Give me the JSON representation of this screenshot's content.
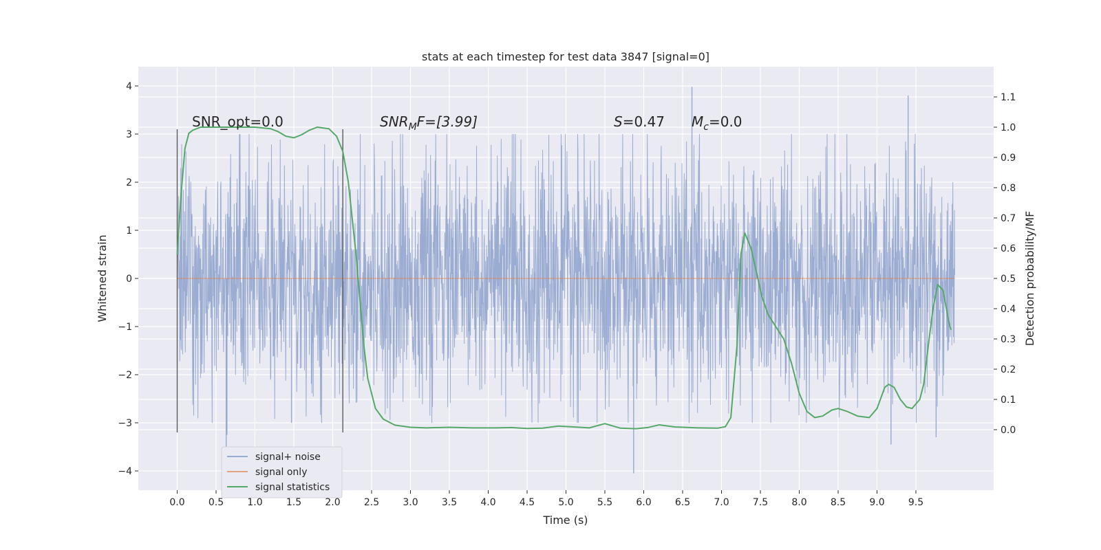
{
  "chart_data": {
    "type": "line",
    "title": "stats at each timestep for test data 3847 [signal=0]",
    "xlabel": "Time (s)",
    "ylabel_left": "Whitened strain",
    "ylabel_right": "Detection probability/MF",
    "xlim": [
      -0.5,
      10.5
    ],
    "ylim_left": [
      -4.4,
      4.4
    ],
    "ylim_right": [
      -0.2,
      1.2
    ],
    "x_ticks": [
      "0.0",
      "0.5",
      "1.0",
      "1.5",
      "2.0",
      "2.5",
      "3.0",
      "3.5",
      "4.0",
      "4.5",
      "5.0",
      "5.5",
      "6.0",
      "6.5",
      "7.0",
      "7.5",
      "8.0",
      "8.5",
      "9.0",
      "9.5"
    ],
    "y_left_ticks": [
      "−4",
      "−3",
      "−2",
      "−1",
      "0",
      "1",
      "2",
      "3",
      "4"
    ],
    "y_right_ticks": [
      "0.0",
      "0.1",
      "0.2",
      "0.3",
      "0.4",
      "0.5",
      "0.6",
      "0.7",
      "0.8",
      "0.9",
      "1.0",
      "1.1"
    ],
    "annotations": {
      "snr_opt": "SNR_opt=0.0",
      "snr_mf_label": "SNR",
      "snr_mf_sub": "M",
      "snr_mf_rest": "F=[3.99]",
      "s_label": "S",
      "s_value": "=0.47",
      "mc_label": "M",
      "mc_sub": "c",
      "mc_value": "=0.0"
    },
    "markers": {
      "x": [
        0.0,
        2.13
      ],
      "ylim": [
        -3.2,
        3.1
      ]
    },
    "noise": {
      "name": "signal+ noise",
      "x_range": [
        0.0,
        10.0
      ],
      "band": [
        -1.3,
        1.3
      ],
      "typical_peak": 2.0,
      "spikes": [
        [
          0.63,
          -3.5
        ],
        [
          0.64,
          -3.25
        ],
        [
          1.47,
          -3.0
        ],
        [
          5.87,
          -4.05
        ],
        [
          6.62,
          3.98
        ],
        [
          9.4,
          3.8
        ],
        [
          9.18,
          -3.45
        ],
        [
          9.76,
          -3.3
        ]
      ]
    },
    "signal_only": {
      "name": "signal only",
      "x_range": [
        0.0,
        10.0
      ],
      "value": 0.0
    },
    "statistics": {
      "name": "signal statistics",
      "points": [
        [
          0.0,
          0.58
        ],
        [
          0.05,
          0.78
        ],
        [
          0.1,
          0.93
        ],
        [
          0.15,
          0.98
        ],
        [
          0.2,
          0.99
        ],
        [
          0.3,
          1.0
        ],
        [
          0.5,
          1.0
        ],
        [
          1.0,
          1.0
        ],
        [
          1.2,
          0.995
        ],
        [
          1.3,
          0.985
        ],
        [
          1.4,
          0.97
        ],
        [
          1.5,
          0.965
        ],
        [
          1.6,
          0.975
        ],
        [
          1.7,
          0.99
        ],
        [
          1.8,
          1.0
        ],
        [
          1.95,
          0.995
        ],
        [
          2.05,
          0.97
        ],
        [
          2.13,
          0.92
        ],
        [
          2.2,
          0.82
        ],
        [
          2.3,
          0.58
        ],
        [
          2.4,
          0.28
        ],
        [
          2.45,
          0.17
        ],
        [
          2.5,
          0.12
        ],
        [
          2.55,
          0.07
        ],
        [
          2.65,
          0.035
        ],
        [
          2.8,
          0.015
        ],
        [
          3.0,
          0.008
        ],
        [
          3.2,
          0.006
        ],
        [
          3.5,
          0.008
        ],
        [
          3.8,
          0.006
        ],
        [
          4.1,
          0.006
        ],
        [
          4.3,
          0.007
        ],
        [
          4.5,
          0.004
        ],
        [
          4.7,
          0.005
        ],
        [
          4.9,
          0.012
        ],
        [
          5.1,
          0.009
        ],
        [
          5.3,
          0.006
        ],
        [
          5.5,
          0.02
        ],
        [
          5.7,
          0.005
        ],
        [
          5.9,
          0.003
        ],
        [
          6.05,
          0.007
        ],
        [
          6.2,
          0.016
        ],
        [
          6.4,
          0.009
        ],
        [
          6.7,
          0.006
        ],
        [
          6.95,
          0.005
        ],
        [
          7.05,
          0.01
        ],
        [
          7.12,
          0.04
        ],
        [
          7.2,
          0.28
        ],
        [
          7.25,
          0.58
        ],
        [
          7.3,
          0.65
        ],
        [
          7.38,
          0.6
        ],
        [
          7.45,
          0.52
        ],
        [
          7.52,
          0.44
        ],
        [
          7.6,
          0.38
        ],
        [
          7.7,
          0.34
        ],
        [
          7.8,
          0.3
        ],
        [
          7.9,
          0.22
        ],
        [
          8.0,
          0.12
        ],
        [
          8.1,
          0.06
        ],
        [
          8.2,
          0.04
        ],
        [
          8.3,
          0.045
        ],
        [
          8.42,
          0.065
        ],
        [
          8.5,
          0.07
        ],
        [
          8.62,
          0.06
        ],
        [
          8.75,
          0.045
        ],
        [
          8.9,
          0.04
        ],
        [
          9.0,
          0.07
        ],
        [
          9.1,
          0.14
        ],
        [
          9.15,
          0.15
        ],
        [
          9.22,
          0.14
        ],
        [
          9.3,
          0.1
        ],
        [
          9.38,
          0.075
        ],
        [
          9.45,
          0.07
        ],
        [
          9.55,
          0.1
        ],
        [
          9.6,
          0.15
        ],
        [
          9.67,
          0.3
        ],
        [
          9.72,
          0.4
        ],
        [
          9.78,
          0.48
        ],
        [
          9.85,
          0.46
        ],
        [
          9.92,
          0.36
        ],
        [
          9.95,
          0.33
        ]
      ]
    },
    "legend": {
      "position": "lower-left"
    },
    "grid": true,
    "colors": {
      "background": "#eaeaf2",
      "noise": "#97a9d0",
      "signal": "#dd8452",
      "statistics": "#55a868",
      "marker": "#5a5a5a",
      "grid": "#ffffff"
    }
  }
}
